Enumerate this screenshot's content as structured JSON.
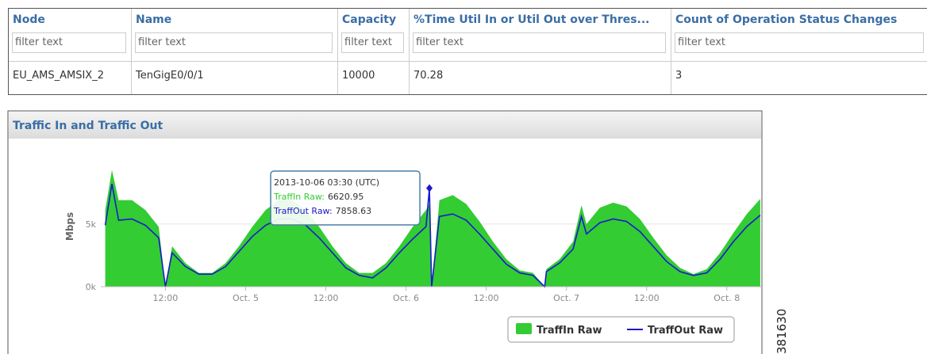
{
  "table": {
    "headers": [
      "Node",
      "Name",
      "Capacity",
      "%Time Util In or Util Out over Thres...",
      "Count of Operation Status Changes"
    ],
    "filters": [
      "filter text",
      "filter text",
      "filter text",
      "filter text",
      "filter text"
    ],
    "rows": [
      [
        "EU_AMS_AMSIX_2",
        "TenGigE0/0/1",
        "10000",
        "70.28",
        "3"
      ]
    ]
  },
  "chart_data": {
    "type": "area-line",
    "title": "Traffic In and Traffic Out",
    "y_label": "Mbps",
    "figure_id": "381630",
    "x": [
      "2013-10-04T03:00Z",
      "2013-10-04T04:00Z",
      "2013-10-04T05:00Z",
      "2013-10-04T07:00Z",
      "2013-10-04T09:00Z",
      "2013-10-04T11:00Z",
      "2013-10-04T12:00Z",
      "2013-10-04T13:00Z",
      "2013-10-04T15:00Z",
      "2013-10-04T17:00Z",
      "2013-10-04T19:00Z",
      "2013-10-04T21:00Z",
      "2013-10-04T23:00Z",
      "2013-10-05T01:00Z",
      "2013-10-05T03:00Z",
      "2013-10-05T05:00Z",
      "2013-10-05T07:00Z",
      "2013-10-05T09:00Z",
      "2013-10-05T11:00Z",
      "2013-10-05T13:00Z",
      "2013-10-05T15:00Z",
      "2013-10-05T17:00Z",
      "2013-10-05T19:00Z",
      "2013-10-05T21:00Z",
      "2013-10-05T23:00Z",
      "2013-10-06T01:00Z",
      "2013-10-06T03:00Z",
      "2013-10-06T03:30Z",
      "2013-10-06T03:50Z",
      "2013-10-06T05:00Z",
      "2013-10-06T07:00Z",
      "2013-10-06T09:00Z",
      "2013-10-06T11:00Z",
      "2013-10-06T13:00Z",
      "2013-10-06T15:00Z",
      "2013-10-06T17:00Z",
      "2013-10-06T19:00Z",
      "2013-10-06T20:45Z",
      "2013-10-06T21:00Z",
      "2013-10-06T23:00Z",
      "2013-10-07T01:00Z",
      "2013-10-07T02:15Z",
      "2013-10-07T03:00Z",
      "2013-10-07T05:00Z",
      "2013-10-07T07:00Z",
      "2013-10-07T09:00Z",
      "2013-10-07T11:00Z",
      "2013-10-07T13:00Z",
      "2013-10-07T15:00Z",
      "2013-10-07T17:00Z",
      "2013-10-07T19:00Z",
      "2013-10-07T21:00Z",
      "2013-10-07T23:00Z",
      "2013-10-08T01:00Z",
      "2013-10-08T03:00Z",
      "2013-10-08T05:00Z"
    ],
    "series": [
      {
        "name": "TraffIn Raw",
        "color": "#33cc33",
        "kind": "area",
        "values": [
          6120,
          9300,
          6900,
          6900,
          6120,
          4780,
          0,
          3220,
          1880,
          1100,
          1100,
          1880,
          3220,
          4780,
          6120,
          6900,
          6900,
          6120,
          4780,
          3220,
          1880,
          1100,
          1100,
          1880,
          3220,
          4780,
          6120,
          6620.95,
          0,
          6900,
          7300,
          6600,
          5200,
          3600,
          2200,
          1300,
          1100,
          0,
          1400,
          2200,
          3600,
          6500,
          5000,
          6300,
          6700,
          6400,
          5400,
          3900,
          2500,
          1500,
          1000,
          1400,
          2700,
          4300,
          5800,
          7000
        ]
      },
      {
        "name": "TraffOut Raw",
        "color": "#1a1acc",
        "kind": "line",
        "values": [
          4900,
          8200,
          5300,
          5400,
          4900,
          3900,
          0,
          2700,
          1600,
          1000,
          1000,
          1600,
          2800,
          4000,
          4900,
          5400,
          5400,
          4900,
          3900,
          2700,
          1500,
          900,
          700,
          1500,
          2700,
          3800,
          4800,
          7858.63,
          0,
          5600,
          5800,
          5300,
          4200,
          3000,
          1800,
          1100,
          900,
          0,
          1200,
          1900,
          3000,
          5600,
          4200,
          5100,
          5400,
          5200,
          4400,
          3200,
          2000,
          1200,
          900,
          1100,
          2200,
          3600,
          4800,
          5700
        ]
      }
    ],
    "xlim": [
      "2013-10-04T02:20Z",
      "2013-10-08T05:15Z"
    ],
    "xticks": [
      {
        "value": "2013-10-04T12:00Z",
        "label": "12:00"
      },
      {
        "value": "2013-10-05T00:00Z",
        "label": "Oct. 5"
      },
      {
        "value": "2013-10-05T12:00Z",
        "label": "12:00"
      },
      {
        "value": "2013-10-06T00:00Z",
        "label": "Oct. 6"
      },
      {
        "value": "2013-10-06T12:00Z",
        "label": "12:00"
      },
      {
        "value": "2013-10-07T00:00Z",
        "label": "Oct. 7"
      },
      {
        "value": "2013-10-07T12:00Z",
        "label": "12:00"
      },
      {
        "value": "2013-10-08T00:00Z",
        "label": "Oct. 8"
      }
    ],
    "ylim": [
      0,
      9600
    ],
    "yticks": [
      {
        "value": 0,
        "label": "0k"
      },
      {
        "value": 5000,
        "label": "5k"
      }
    ],
    "grid": true,
    "legend": "bottom-right",
    "tooltip": {
      "title": "2013-10-06 03:30 (UTC)",
      "labels": [
        "TraffIn Raw:",
        "TraffOut Raw:"
      ]
    }
  }
}
